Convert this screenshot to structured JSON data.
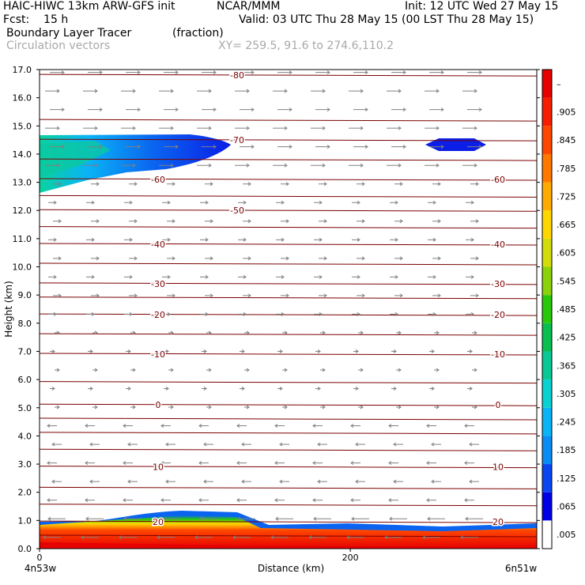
{
  "header": {
    "model": "HAIC-HIWC 13km ARW-GFS init",
    "org": "NCAR/MMM",
    "init": "Init: 12 UTC Wed 27 May 15",
    "fcst": "Fcst:    15 h",
    "valid": "Valid: 03 UTC Thu 28 May 15 (00 LST Thu 28 May 15)",
    "field": "Boundary Layer Tracer",
    "units": "(fraction)",
    "vectors": "Circulation vectors",
    "xy": "XY= 259.5, 91.6 to 274.6,110.2"
  },
  "chart_data": {
    "type": "cross-section",
    "xlabel": "Distance (km)",
    "ylabel": "Height (km)",
    "ylim": [
      0,
      17
    ],
    "yticks": [
      "0.0",
      "1.0",
      "2.0",
      "3.0",
      "4.0",
      "5.0",
      "6.0",
      "7.0",
      "8.0",
      "9.0",
      "10.0",
      "11.0",
      "12.0",
      "13.0",
      "14.0",
      "15.0",
      "16.0",
      "17.0"
    ],
    "xlim": [
      0,
      320
    ],
    "xticks": [
      {
        "value": 0,
        "label": "0"
      },
      {
        "value": 200,
        "label": "200"
      }
    ],
    "x_end_labels": {
      "left": "4n53w",
      "right": "6n51w"
    },
    "colorbar": {
      "labels": [
        ".005",
        ".065",
        ".125",
        ".185",
        ".245",
        ".305",
        ".365",
        ".425",
        ".485",
        ".545",
        ".605",
        ".665",
        ".725",
        ".785",
        ".845",
        ".905",
        "–"
      ],
      "colors": [
        "#ffffff",
        "#0000e6",
        "#0a46f0",
        "#0a8cf5",
        "#0ab4f5",
        "#0ad2d2",
        "#0ac896",
        "#0abe50",
        "#28c80a",
        "#8cd20a",
        "#d2dc0a",
        "#ffd700",
        "#ffaa00",
        "#ff7800",
        "#ff4600",
        "#f51e00",
        "#e60000"
      ]
    },
    "isotherms": [
      {
        "label": "20",
        "height": 0.95
      },
      {
        "label": "10",
        "height": 2.9
      },
      {
        "label": "0",
        "height": 5.1
      },
      {
        "label": "-10",
        "height": 6.9
      },
      {
        "label": "-20",
        "height": 8.3
      },
      {
        "label": "-30",
        "height": 9.4
      },
      {
        "label": "-40",
        "height": 10.8
      },
      {
        "label": "-50",
        "height": 12.0
      },
      {
        "label": "-60",
        "height": 13.1
      },
      {
        "label": "-70",
        "height": 14.5
      },
      {
        "label": "-80",
        "height": 16.8
      }
    ],
    "contour_lines_heights": [
      0.45,
      0.95,
      1.55,
      2.15,
      2.9,
      3.5,
      4.1,
      4.6,
      5.1,
      5.9,
      6.9,
      7.6,
      8.3,
      8.9,
      9.4,
      10.1,
      10.8,
      11.4,
      12.0,
      12.5,
      13.1,
      13.8,
      14.5,
      15.2,
      16.8
    ],
    "tracer_regions": [
      {
        "name": "boundary layer",
        "x": [
          0,
          320
        ],
        "height_range": [
          0.0,
          1.3
        ],
        "max_value": 0.98
      },
      {
        "name": "upper anvil",
        "x": [
          0,
          120
        ],
        "height_range": [
          12.8,
          14.7
        ],
        "max_value": 0.3
      },
      {
        "name": "upper patch",
        "x": [
          240,
          275
        ],
        "height_range": [
          14.1,
          14.5
        ],
        "max_value": 0.1
      }
    ],
    "vectors": {
      "low_level_direction": "westward",
      "upper_level_direction": "eastward",
      "reversal_height": 5.0
    }
  }
}
